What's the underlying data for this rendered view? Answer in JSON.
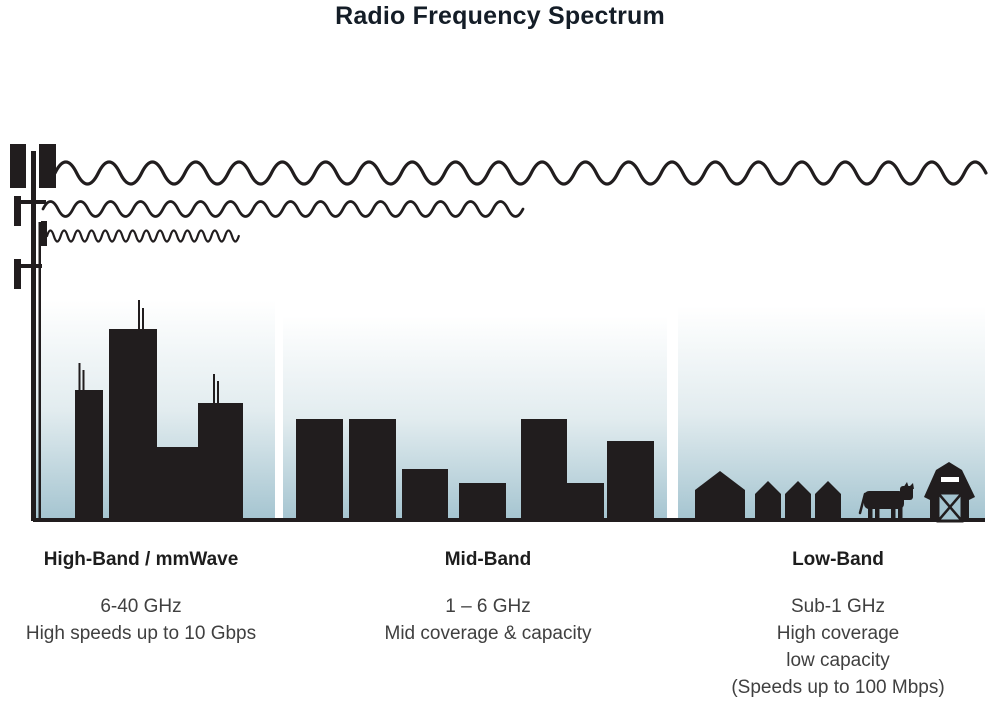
{
  "title": "Radio Frequency Spectrum",
  "bands": [
    {
      "name": "High-Band / mmWave",
      "details": [
        "6-40 GHz",
        "High speeds up to 10 Gbps"
      ],
      "scene": "city-skyscrapers-with-antennas",
      "wave": "shortest-wavelength-shortest-reach"
    },
    {
      "name": "Mid-Band",
      "details": [
        "1 – 6 GHz",
        "Mid coverage & capacity"
      ],
      "scene": "mid-rise-buildings",
      "wave": "medium-wavelength-medium-reach"
    },
    {
      "name": "Low-Band",
      "details": [
        "Sub-1 GHz",
        "High coverage",
        "low capacity",
        "(Speeds up to 100 Mbps)"
      ],
      "scene": "rural-houses-cow-and-barn",
      "wave": "longest-wavelength-longest-reach"
    }
  ],
  "colors": {
    "ink": "#211d1e",
    "title": "#141d27",
    "heading": "#1d1d1d",
    "text": "#404040",
    "sky_top": "#ffffff",
    "sky_mid": "#e2ecef",
    "sky_bottom": "#a4c4d0"
  }
}
